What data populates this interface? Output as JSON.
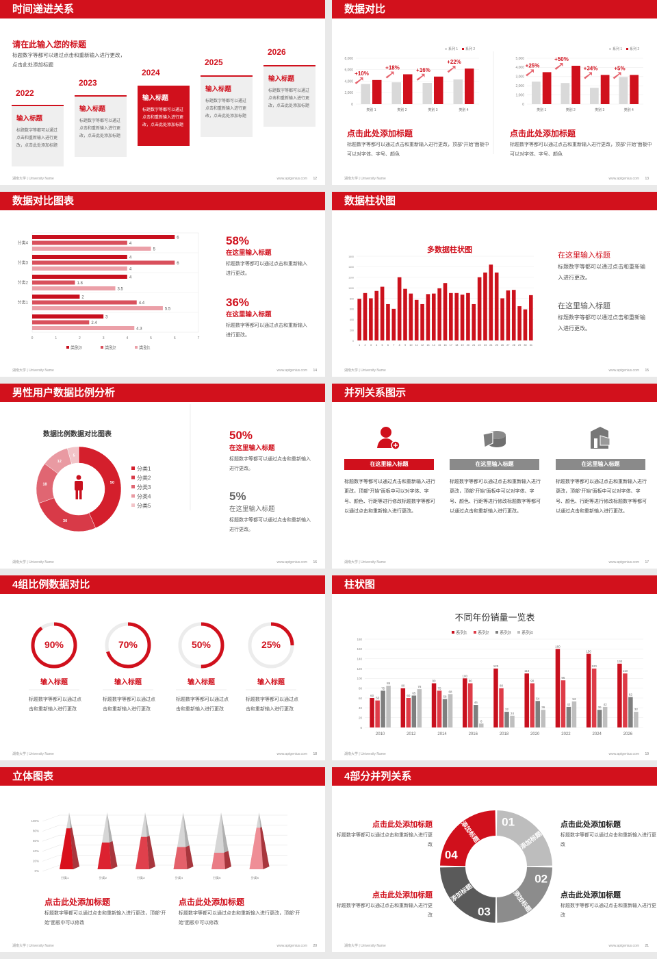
{
  "footer": {
    "left": "湖南大学 | University Name",
    "right": "www.aptgenius.com"
  },
  "colors": {
    "brand_red": "#d2111c",
    "series_gray": "#d9d9d9",
    "dark_gray": "#7f7f7f",
    "light_gray": "#bfbfbf"
  },
  "slides": [
    {
      "title": "时间递进关系",
      "page": "12",
      "heading": "请在此输入您的标题",
      "desc": "标题数字等都可以通过点击和重新输入进行更改，点击此处添加标题",
      "timeline": [
        {
          "year": "2022",
          "title": "输入标题",
          "text": "标题数字等都可以通过点击和重新输入进行更改，点击此处添加标题"
        },
        {
          "year": "2023",
          "title": "输入标题",
          "text": "标题数字等都可以通过点击和重新输入进行更改，点击此处添加标题"
        },
        {
          "year": "2024",
          "title": "输入标题",
          "text": "标题数字等都可以通过点击和重新输入进行更改，点击此处添加标题",
          "highlighted": true
        },
        {
          "year": "2025",
          "title": "输入标题",
          "text": "标题数字等都可以通过点击和重新输入进行更改，点击此处添加标题"
        },
        {
          "year": "2026",
          "title": "输入标题",
          "text": "标题数字等都可以通过点击和重新输入进行更改，点击此处添加标题"
        }
      ]
    },
    {
      "title": "数据对比",
      "page": "13",
      "blocks": [
        {
          "title": "点击此处添加标题",
          "text": "标题数字等都可以通过点击和重新输入进行更改，顶部“开始”面板中可以对字体、字号、颜色"
        },
        {
          "title": "点击此处添加标题",
          "text": "标题数字等都可以通过点击和重新输入进行更改，顶部“开始”面板中可以对字体、字号、颜色"
        }
      ]
    },
    {
      "title": "数据对比图表",
      "page": "14",
      "stats": [
        {
          "value": "58%",
          "title": "在这里输入标题",
          "text": "标题数字等都可以通过点击和重新输入进行更改。"
        },
        {
          "value": "36%",
          "title": "在这里输入标题",
          "text": "标题数字等都可以通过点击和重新输入进行更改。"
        }
      ]
    },
    {
      "title": "数据柱状图",
      "page": "15",
      "items": [
        {
          "title": "在这里输入标题",
          "text": "标题数字等都可以通过点击和重新输入进行更改。"
        },
        {
          "title": "在这里输入标题",
          "text": "标题数字等都可以通过点击和重新输入进行更改。"
        }
      ]
    },
    {
      "title": "男性用户数据比例分析",
      "page": "16",
      "stats": [
        {
          "value": "50%",
          "title": "在这里输入标题",
          "text": "标题数字等都可以通过点击和重新输入进行更改。"
        },
        {
          "value": "5%",
          "title": "在这里输入标题",
          "text": "标题数字等都可以通过点击和重新输入进行更改。"
        }
      ]
    },
    {
      "title": "并列关系图示",
      "page": "17",
      "columns": [
        {
          "icon": "user-add-icon",
          "label": "在这里输入标题",
          "text": "标题数字等都可以通过点击和重新输入进行更改，顶部“开始”面板中可以对字体、字号、颜色、行距等进行修改标题数字等都可以通过点击和重新输入进行更改。"
        },
        {
          "icon": "pie-chart-icon",
          "label": "在这里输入标题",
          "text": "标题数字等都可以通过点击和重新输入进行更改，顶部“开始”面板中可以对字体、字号、颜色、行距等进行修改标题数字等都可以通过点击和重新输入进行更改。"
        },
        {
          "icon": "building-icon",
          "label": "在这里输入标题",
          "text": "标题数字等都可以通过点击和重新输入进行更改，顶部“开始”面板中可以对字体、字号、颜色、行距等进行修改标题数字等都可以通过点击和重新输入进行更改。"
        }
      ]
    },
    {
      "title": "4组比例数据对比",
      "page": "18",
      "rings": [
        {
          "value": 90,
          "label": "90%",
          "title": "输入标题",
          "text": "标题数字等都可以通过点击和重新输入进行更改"
        },
        {
          "value": 70,
          "label": "70%",
          "title": "输入标题",
          "text": "标题数字等都可以通过点击和重新输入进行更改"
        },
        {
          "value": 50,
          "label": "50%",
          "title": "输入标题",
          "text": "标题数字等都可以通过点击和重新输入进行更改"
        },
        {
          "value": 25,
          "label": "25%",
          "title": "输入标题",
          "text": "标题数字等都可以通过点击和重新输入进行更改"
        }
      ]
    },
    {
      "title": "柱状图",
      "page": "19"
    },
    {
      "title": "立体图表",
      "page": "20",
      "blocks": [
        {
          "title": "点击此处添加标题",
          "text": "标题数字等都可以通过点击和重新输入进行更改，顶部“开始”面板中可以修改"
        },
        {
          "title": "点击此处添加标题",
          "text": "标题数字等都可以通过点击和重新输入进行更改，顶部“开始”面板中可以修改"
        }
      ]
    },
    {
      "title": "4部分并列关系",
      "page": "21",
      "segments": [
        {
          "num": "01",
          "label": "添加标题",
          "color": "#bdbdbd"
        },
        {
          "num": "02",
          "label": "添加标题",
          "color": "#8c8c8c"
        },
        {
          "num": "03",
          "label": "添加标题",
          "color": "#5a5a5a"
        },
        {
          "num": "04",
          "label": "添加标题",
          "color": "#d0101c"
        }
      ],
      "blocks": [
        {
          "title": "点击此处添加标题",
          "text": "标题数字等都可以通过点击和重新输入进行更改",
          "color": "#d0101c"
        },
        {
          "title": "点击此处添加标题",
          "text": "标题数字等都可以通过点击和重新输入进行更改",
          "color": "#d0101c"
        },
        {
          "title": "点击此处添加标题",
          "text": "标题数字等都可以通过点击和重新输入进行更改",
          "color": "#222222"
        },
        {
          "title": "点击此处添加标题",
          "text": "标题数字等都可以通过点击和重新输入进行更改",
          "color": "#222222"
        }
      ]
    }
  ],
  "chart_data": [
    {
      "type": "bar",
      "categories": [
        "类别 1",
        "类别 2",
        "类别 3",
        "类别 4"
      ],
      "ylim": [
        0,
        8000
      ],
      "yticks": [
        "0",
        "2,000",
        "4,000",
        "6,000",
        "8,000"
      ],
      "series": [
        {
          "name": "系列 1",
          "values": [
            3500,
            3800,
            3700,
            4300
          ]
        },
        {
          "name": "系列 2",
          "values": [
            4200,
            5200,
            4800,
            6200
          ]
        }
      ],
      "annotations": [
        "+10%",
        "+18%",
        "+16%",
        "+22%"
      ]
    },
    {
      "type": "bar",
      "categories": [
        "类别 1",
        "类别 2",
        "类别 3",
        "类别 4"
      ],
      "ylim": [
        0,
        5000
      ],
      "yticks": [
        "0",
        "1,000",
        "2,000",
        "3,000",
        "4,000",
        "5,000"
      ],
      "series": [
        {
          "name": "系列 1",
          "values": [
            2450,
            2300,
            1780,
            2950
          ]
        },
        {
          "name": "系列 2",
          "values": [
            3480,
            4180,
            3180,
            3180
          ]
        }
      ],
      "annotations": [
        "+25%",
        "+50%",
        "+34%",
        "+5%"
      ]
    },
    {
      "type": "bar",
      "orientation": "horizontal",
      "categories": [
        "分类4",
        "分类3",
        "分类2",
        "分类1",
        ""
      ],
      "xlim": [
        0,
        7
      ],
      "series": [
        {
          "name": "类别3",
          "values": [
            6,
            4,
            4,
            2,
            3
          ]
        },
        {
          "name": "类别2",
          "values": [
            4,
            6,
            1.8,
            4.4,
            2.4
          ]
        },
        {
          "name": "类别1",
          "values": [
            5,
            4,
            3.5,
            5.5,
            4.3
          ]
        }
      ]
    },
    {
      "type": "bar",
      "title": "多数据柱状图",
      "ylim": [
        0,
        1600
      ],
      "yticks": [
        "0",
        "200",
        "400",
        "600",
        "800",
        "1000",
        "1200",
        "1400",
        "1600"
      ],
      "categories": [
        "1",
        "2",
        "3",
        "4",
        "5",
        "6",
        "7",
        "8",
        "9",
        "10",
        "11",
        "12",
        "13",
        "14",
        "15",
        "16",
        "17",
        "18",
        "19",
        "20",
        "21",
        "22",
        "23",
        "24",
        "25",
        "26",
        "27",
        "28",
        "29",
        "30",
        "31"
      ],
      "values": [
        790,
        900,
        800,
        940,
        1020,
        690,
        600,
        1200,
        980,
        890,
        770,
        690,
        880,
        890,
        990,
        1090,
        900,
        900,
        870,
        900,
        690,
        1200,
        1290,
        1440,
        1290,
        800,
        950,
        960,
        650,
        590,
        860
      ]
    },
    {
      "type": "pie",
      "title": "数据比例数据对比图表",
      "donut": true,
      "categories": [
        "分类1",
        "分类2",
        "分类3",
        "分类4",
        "分类5"
      ],
      "values": [
        50,
        30,
        18,
        12,
        5
      ],
      "colors": [
        "#d41f2c",
        "#d83a48",
        "#e06672",
        "#e99aa2",
        "#f2c4c8"
      ]
    },
    {
      "type": "bar",
      "title": "不同年份销量一览表",
      "ylim": [
        0,
        180
      ],
      "yticks": [
        "0",
        "20",
        "40",
        "60",
        "80",
        "100",
        "120",
        "140",
        "160",
        "180"
      ],
      "categories": [
        "2010",
        "2012",
        "2014",
        "2016",
        "2018",
        "2020",
        "2022",
        "2024",
        "2026"
      ],
      "series": [
        {
          "name": "系列1",
          "values": [
            60,
            80,
            90,
            100,
            120,
            110,
            160,
            150,
            130
          ],
          "color": "#c8101e"
        },
        {
          "name": "系列2",
          "values": [
            55,
            60,
            75,
            90,
            80,
            90,
            96,
            120,
            110
          ],
          "color": "#de3c48"
        },
        {
          "name": "系列3",
          "values": [
            75,
            65,
            58,
            46,
            32,
            54,
            42,
            36,
            62
          ],
          "color": "#7f7f7f"
        },
        {
          "name": "系列4",
          "values": [
            85,
            78,
            68,
            8,
            24,
            36,
            53,
            42,
            32
          ],
          "color": "#bfbfbf"
        }
      ]
    },
    {
      "type": "bar",
      "style": "3d-pyramid",
      "categories": [
        "分类1",
        "分类2",
        "分类3",
        "分类4",
        "分类5",
        "分类6"
      ],
      "ylim": [
        0,
        100
      ],
      "yticks": [
        "0%",
        "20%",
        "40%",
        "60%",
        "80%",
        "100%"
      ],
      "values": [
        72,
        47,
        57,
        39,
        29,
        73
      ]
    }
  ]
}
